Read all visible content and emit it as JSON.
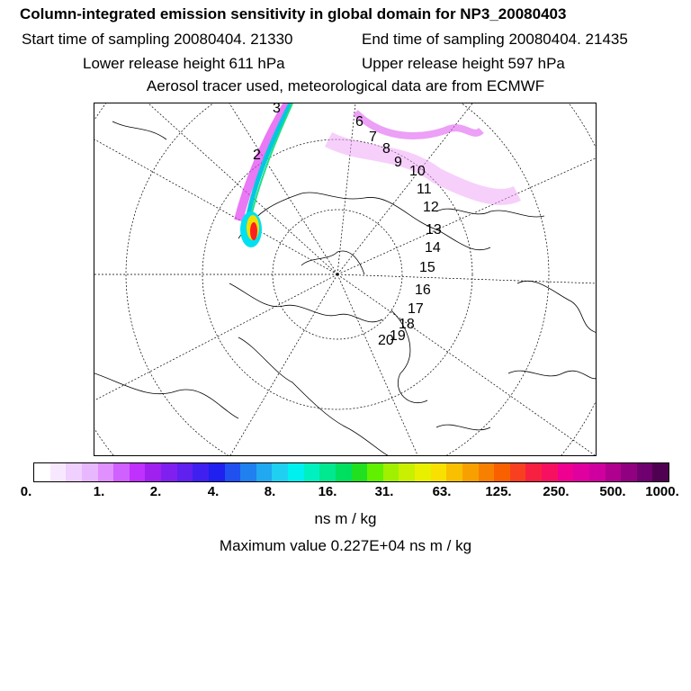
{
  "header": {
    "title": "Column-integrated emission sensitivity in global domain for NP3_20080403",
    "start_time": "Start time of sampling 20080404. 21330",
    "end_time": "End time of sampling 20080404. 21435",
    "lower_height": "Lower release height  611 hPa",
    "upper_height": "Upper release height  597 hPa",
    "note": "Aerosol tracer used, meteorological data are from ECMWF"
  },
  "map": {
    "trajectory_labels": [
      "2",
      "3",
      "6",
      "7",
      "8",
      "9",
      "10",
      "11",
      "12",
      "13",
      "14",
      "15",
      "16",
      "17",
      "18",
      "19",
      "20"
    ],
    "colors": {
      "plume_magenta": "#e040f0",
      "plume_cyan": "#00c8e0",
      "source_red": "#ff1010"
    }
  },
  "colorbar": {
    "colors": [
      "#ffffff",
      "#f8e8ff",
      "#f0d0ff",
      "#e8b8ff",
      "#e090ff",
      "#d060ff",
      "#c030ff",
      "#a020f0",
      "#8020f0",
      "#6020f0",
      "#4020f0",
      "#2020f0",
      "#2050f0",
      "#2080f0",
      "#20a8f0",
      "#20d0f0",
      "#00f0f0",
      "#00f0c0",
      "#00e890",
      "#00e060",
      "#20e020",
      "#60f000",
      "#a0f000",
      "#c8f000",
      "#e8f000",
      "#f8e000",
      "#f8c000",
      "#f8a000",
      "#f88000",
      "#f86000",
      "#f84020",
      "#f82040",
      "#f81060",
      "#f00090",
      "#e000a0",
      "#d000a0",
      "#b00090",
      "#900080",
      "#700070",
      "#500050"
    ],
    "ticks": [
      "0.",
      "1.",
      "2.",
      "4.",
      "8.",
      "16.",
      "31.",
      "63.",
      "125.",
      "250.",
      "500.",
      "1000."
    ],
    "unit": "ns m / kg"
  },
  "max_value": "Maximum value  0.227E+04 ns m / kg"
}
